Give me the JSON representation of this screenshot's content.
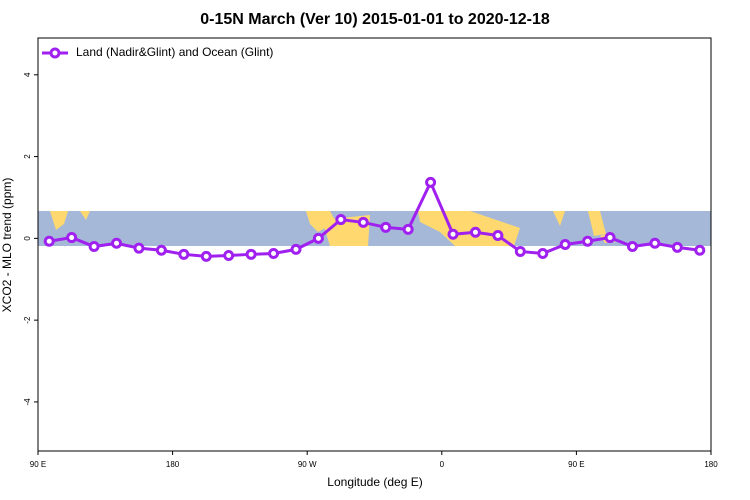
{
  "chart_data": {
    "type": "line",
    "title": "0-15N March (Ver 10)   2015-01-01 to 2020-12-18",
    "x_label": "Longitude (deg E)",
    "y_label": "XCO2 - MLO trend (ppm)",
    "x": [
      97.5,
      112.5,
      127.5,
      142.5,
      157.5,
      172.5,
      187.5,
      202.5,
      217.5,
      232.5,
      247.5,
      262.5,
      277.5,
      292.5,
      307.5,
      322.5,
      337.5,
      352.5,
      367.5,
      382.5,
      397.5,
      412.5,
      427.5,
      442.5,
      457.5,
      472.5,
      487.5,
      502.5,
      517.5,
      532.5
    ],
    "series": [
      {
        "name": "Land (Nadir&Glint) and Ocean (Glint)",
        "color": "#a020f0",
        "values": [
          -0.07,
          0.02,
          -0.2,
          -0.12,
          -0.24,
          -0.29,
          -0.39,
          -0.44,
          -0.42,
          -0.39,
          -0.37,
          -0.27,
          0.0,
          0.46,
          0.39,
          0.27,
          0.22,
          1.37,
          0.1,
          0.15,
          0.07,
          -0.32,
          -0.37,
          -0.15,
          -0.07,
          0.02,
          -0.2,
          -0.12,
          -0.22,
          -0.29
        ]
      }
    ],
    "xlim": [
      90,
      540
    ],
    "ylim": [
      -5.2,
      4.9
    ],
    "xticks": [
      {
        "value": 90,
        "label": "90 E"
      },
      180,
      {
        "value": 270,
        "label": "90 W"
      },
      {
        "value": 360,
        "label": "0"
      },
      {
        "value": 450,
        "label": "90 E"
      },
      {
        "value": 540,
        "label": "180"
      }
    ],
    "yticks": [
      -4,
      -2,
      0,
      2,
      4
    ],
    "legend": "top-left"
  }
}
